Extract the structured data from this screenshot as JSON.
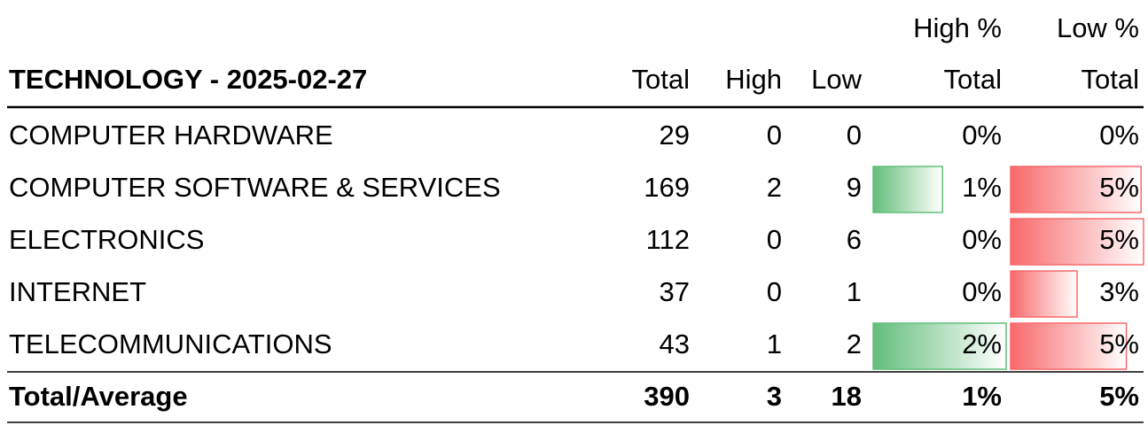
{
  "table": {
    "title": "TECHNOLOGY - 2025-02-27",
    "header_top": [
      "High %",
      "Low %"
    ],
    "columns": [
      "Total",
      "High",
      "Low",
      "Total",
      "Total"
    ],
    "rows": [
      [
        "COMPUTER HARDWARE",
        "29",
        "0",
        "0",
        {
          "value": 0,
          "label": "0%"
        },
        {
          "value": 0,
          "label": "0%"
        }
      ],
      [
        "COMPUTER SOFTWARE & SERVICES",
        "169",
        "2",
        "9",
        {
          "value": 1.2,
          "label": "1%"
        },
        {
          "value": 5.3,
          "label": "5%"
        }
      ],
      [
        "ELECTRONICS",
        "112",
        "0",
        "6",
        {
          "value": 0,
          "label": "0%"
        },
        {
          "value": 5.4,
          "label": "5%"
        }
      ],
      [
        "INTERNET",
        "37",
        "0",
        "1",
        {
          "value": 0,
          "label": "0%"
        },
        {
          "value": 2.7,
          "label": "3%"
        }
      ],
      [
        "TELECOMMUNICATIONS",
        "43",
        "1",
        "2",
        {
          "value": 2.3,
          "label": "2%"
        },
        {
          "value": 4.7,
          "label": "5%"
        }
      ]
    ],
    "total_row": [
      "Total/Average",
      "390",
      "3",
      "18",
      "1%",
      "5%"
    ]
  }
}
